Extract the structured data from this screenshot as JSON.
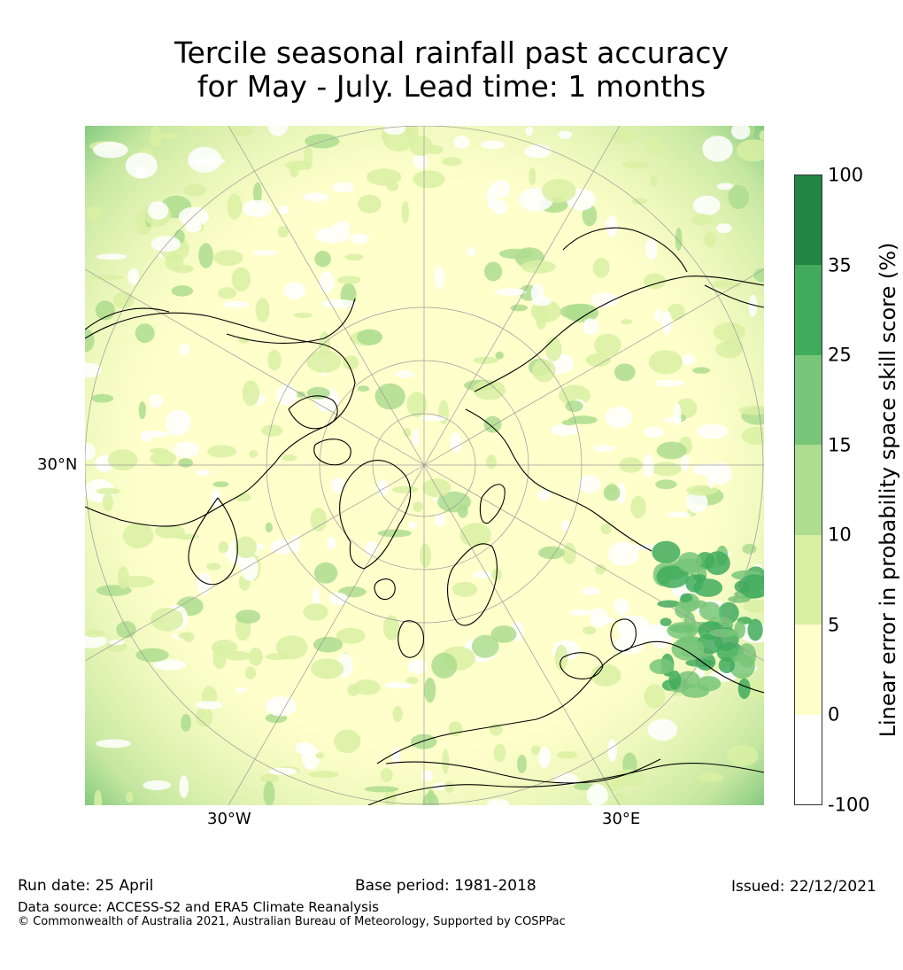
{
  "title": {
    "line1": "Tercile seasonal rainfall past accuracy",
    "line2": "for May - July. Lead time: 1 months"
  },
  "map": {
    "projection": "north polar stereographic",
    "labels": {
      "lat_30n": "30°N",
      "lon_30w": "30°W",
      "lon_30e": "30°E"
    },
    "colors": {
      "ocean_light": "#ffffcc",
      "land_light": "#ffffcc",
      "coast": "#000000",
      "grid": "#9a9a9a"
    }
  },
  "colorbar": {
    "title": "Linear error in probability space skill score (%)",
    "ticks": [
      "100",
      "35",
      "25",
      "15",
      "10",
      "5",
      "0",
      "-100"
    ],
    "colors": [
      "#238443",
      "#41ab5d",
      "#78c679",
      "#addd8e",
      "#d9f0a3",
      "#ffffcc",
      "#ffffff"
    ]
  },
  "footer": {
    "run_date": "Run date: 25 April",
    "base_period": "Base period: 1981-2018",
    "issued": "Issued: 22/12/2021",
    "data_source": "Data source: ACCESS-S2 and ERA5 Climate Reanalysis",
    "copyright": "© Commonwealth of Australia 2021, Australian Bureau of Meteorology, Supported by COSPPac"
  }
}
